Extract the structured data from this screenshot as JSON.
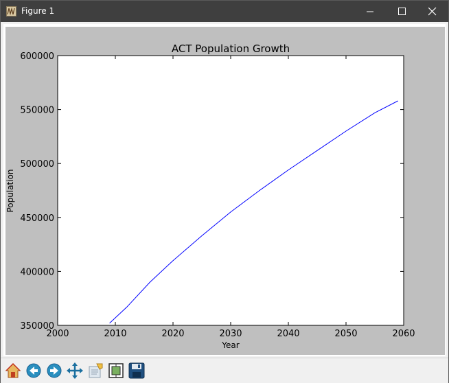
{
  "window": {
    "title": "Figure 1"
  },
  "toolbar": {
    "buttons": [
      {
        "icon": "home-icon"
      },
      {
        "icon": "back-icon"
      },
      {
        "icon": "forward-icon"
      },
      {
        "icon": "pan-icon"
      },
      {
        "icon": "zoom-icon"
      },
      {
        "icon": "subplots-icon"
      },
      {
        "icon": "save-icon"
      }
    ]
  },
  "chart_data": {
    "type": "line",
    "title": "ACT Population Growth",
    "xlabel": "Year",
    "ylabel": "Population",
    "xlim": [
      2000,
      2060
    ],
    "ylim": [
      350000,
      600000
    ],
    "xticks": [
      "2000",
      "2010",
      "2020",
      "2030",
      "2040",
      "2050",
      "2060"
    ],
    "yticks": [
      "350000",
      "400000",
      "450000",
      "500000",
      "550000",
      "600000"
    ],
    "grid": false,
    "line_color": "#0000ff",
    "series": [
      {
        "x": [
          2009,
          2012,
          2016,
          2020,
          2025,
          2030,
          2035,
          2040,
          2045,
          2050,
          2055,
          2059
        ],
        "values": [
          352000,
          367000,
          390000,
          410000,
          433000,
          455000,
          475000,
          494000,
          512000,
          530000,
          547000,
          558000
        ]
      }
    ]
  }
}
